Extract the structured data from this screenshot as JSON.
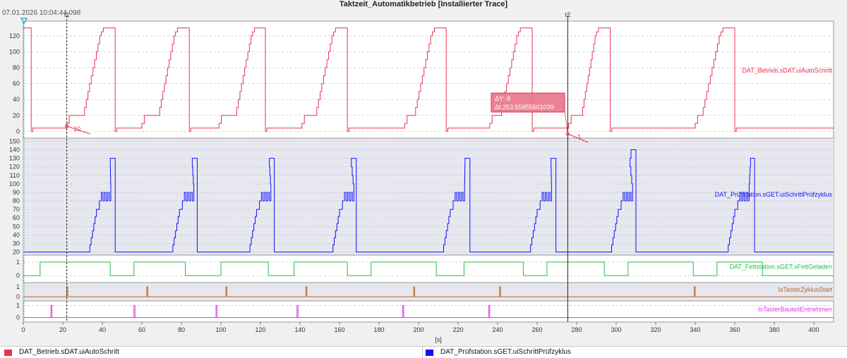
{
  "title": "Taktzeit_Automatikbetrieb [Installierter Trace]",
  "timestamp": "07.01.2026 10:04:44.098",
  "legend": [
    {
      "label": "DAT_Betrieb.sDAT.uiAutoSchritt",
      "color": "#e8334f"
    },
    {
      "label": "DAT_Prüfstation.sGET.uiSchrittPrüfzyklus",
      "color": "#1010ff"
    }
  ],
  "cursors": {
    "t1": {
      "label": "t1",
      "time": 22.0
    },
    "t2": {
      "label": "t2",
      "time": 275.5
    }
  },
  "measurement": {
    "dy": "ΔY:-9",
    "dt": "Δt:253.55855601039",
    "start_value_label": "10",
    "end_value_label": "1"
  },
  "chart_data": {
    "type": "line",
    "x_axis": {
      "label": "[s]",
      "range": [
        0,
        410
      ],
      "ticks": [
        0,
        20,
        40,
        60,
        80,
        100,
        120,
        140,
        160,
        180,
        200,
        220,
        240,
        260,
        280,
        300,
        320,
        340,
        360,
        380,
        400
      ]
    },
    "panels": [
      {
        "signal": "DAT_Betrieb.sDAT.uiAutoSchritt",
        "color": "#e8334f",
        "y_range": [
          -5,
          135
        ],
        "y_ticks": [
          0,
          20,
          40,
          60,
          80,
          100,
          120
        ],
        "shaded": false,
        "cycles": [
          {
            "drop": 4,
            "start": 22,
            "ramp_start": 31,
            "ramp_end": 39.5,
            "cycle_end": 42.5
          },
          {
            "drop": 46.5,
            "start": 60,
            "ramp_start": 69,
            "ramp_end": 77,
            "cycle_end": 80.5
          },
          {
            "drop": 84,
            "start": 99,
            "ramp_start": 108,
            "ramp_end": 116,
            "cycle_end": 119.5
          },
          {
            "drop": 122.5,
            "start": 141,
            "ramp_start": 148.5,
            "ramp_end": 157,
            "cycle_end": 160.5
          },
          {
            "drop": 164,
            "start": 193,
            "ramp_start": 198.5,
            "ramp_end": 207,
            "cycle_end": 210.5
          },
          {
            "drop": 214,
            "start": 236,
            "ramp_start": 242,
            "ramp_end": 250.5,
            "cycle_end": 254
          },
          {
            "drop": 257.5,
            "start": 276,
            "ramp_start": 283,
            "ramp_end": 290,
            "cycle_end": 293.5
          },
          {
            "drop": 297,
            "start": 340,
            "ramp_start": 344,
            "ramp_end": 353,
            "cycle_end": 356.5
          },
          {
            "drop": 360,
            "start": 410,
            "ramp_start": 410,
            "ramp_end": 410,
            "cycle_end": 410
          }
        ],
        "cycle_levels": {
          "idle_after_drop": 4,
          "pre_ramp": 10,
          "plateau": 20,
          "ramp_steps": [
            30,
            40,
            50,
            60,
            70,
            80,
            90,
            100,
            110,
            120
          ],
          "top_steps": [
            125,
            130
          ],
          "initial_value": 130
        }
      },
      {
        "signal": "DAT_Prüfstation.sGET.uiSchrittPrüfzyklus",
        "color": "#1010ff",
        "y_range": [
          18,
          152
        ],
        "y_ticks": [
          20,
          30,
          40,
          50,
          60,
          70,
          80,
          90,
          100,
          110,
          120,
          130,
          140,
          150
        ],
        "shaded": true,
        "cycles": [
          {
            "start": 33,
            "ramp_end": 37,
            "top_start": 44,
            "top_end": 46.5
          },
          {
            "start": 75,
            "ramp_end": 79,
            "top_start": 85.5,
            "top_end": 88
          },
          {
            "start": 114,
            "ramp_end": 118,
            "top_start": 124.5,
            "top_end": 127
          },
          {
            "start": 156,
            "ramp_end": 160,
            "top_start": 166,
            "top_end": 168.5
          },
          {
            "start": 212,
            "ramp_end": 216,
            "top_start": 223.5,
            "top_end": 226
          },
          {
            "start": 256,
            "ramp_end": 260,
            "top_start": 267,
            "top_end": 269.5
          },
          {
            "start": 297,
            "ramp_end": 301,
            "top_start": 307,
            "top_end": 310
          },
          {
            "start": 356,
            "ramp_end": 360,
            "top_start": 368,
            "top_end": 370
          }
        ],
        "cycle_levels": {
          "base": 20,
          "ramp_top": 70,
          "mid": 80,
          "oscillate": [
            80,
            90
          ],
          "top_steps": [
            100,
            110,
            120,
            130
          ],
          "high_peak": 140
        }
      },
      {
        "signal": "DAT_Fettstation.sGET.xFettGeladen",
        "color": "#22bb44",
        "y_range": [
          -0.2,
          1.2
        ],
        "y_ticks": [
          0,
          1
        ],
        "shaded": false,
        "edges": [
          {
            "t": 0,
            "v": 0
          },
          {
            "t": 8.5,
            "v": 1
          },
          {
            "t": 44,
            "v": 0
          },
          {
            "t": 56,
            "v": 1
          },
          {
            "t": 82,
            "v": 0
          },
          {
            "t": 100,
            "v": 1
          },
          {
            "t": 124,
            "v": 0
          },
          {
            "t": 137,
            "v": 1
          },
          {
            "t": 164,
            "v": 0
          },
          {
            "t": 176,
            "v": 1
          },
          {
            "t": 209,
            "v": 0
          },
          {
            "t": 223,
            "v": 1
          },
          {
            "t": 253,
            "v": 0
          },
          {
            "t": 265,
            "v": 1
          },
          {
            "t": 294,
            "v": 0
          },
          {
            "t": 306,
            "v": 1
          },
          {
            "t": 339,
            "v": 0
          },
          {
            "t": 351,
            "v": 1
          },
          {
            "t": 374,
            "v": 0
          }
        ],
        "end_value": 0
      },
      {
        "signal": "IxTasterZyklusStart",
        "color": "#b8651e",
        "y_range": [
          -0.2,
          1.2
        ],
        "y_ticks": [
          0,
          1
        ],
        "shaded": true,
        "pulses": [
          22,
          62.5,
          102.5,
          143,
          197.5,
          241,
          339.5
        ]
      },
      {
        "signal": "IxTasterBauteilEntnehmen",
        "color": "#e633e6",
        "y_range": [
          -0.2,
          1.2
        ],
        "y_ticks": [
          0,
          1
        ],
        "shaded": false,
        "pulses": [
          14,
          56,
          97.5,
          138.5,
          192,
          235.5
        ]
      }
    ]
  }
}
